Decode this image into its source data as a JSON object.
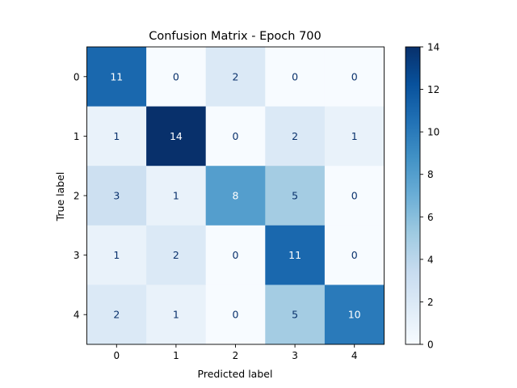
{
  "chart_data": {
    "type": "heatmap",
    "title": "Confusion Matrix - Epoch 700",
    "xlabel": "Predicted label",
    "ylabel": "True label",
    "x_categories": [
      "0",
      "1",
      "2",
      "3",
      "4"
    ],
    "y_categories": [
      "0",
      "1",
      "2",
      "3",
      "4"
    ],
    "values": [
      [
        11,
        0,
        2,
        0,
        0
      ],
      [
        1,
        14,
        0,
        2,
        1
      ],
      [
        3,
        1,
        8,
        5,
        0
      ],
      [
        1,
        2,
        0,
        11,
        0
      ],
      [
        2,
        1,
        0,
        5,
        10
      ]
    ],
    "colormap": "Blues",
    "color_range": [
      0,
      14
    ],
    "colorbar_ticks": [
      0,
      2,
      4,
      6,
      8,
      10,
      12,
      14
    ],
    "grid": false
  }
}
